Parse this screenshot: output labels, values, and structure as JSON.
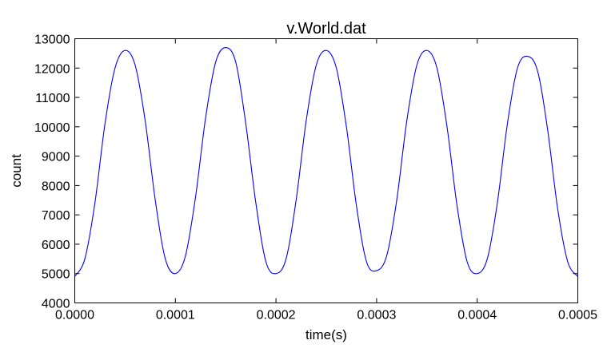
{
  "chart_data": {
    "type": "line",
    "title": "v.World.dat",
    "xlabel": "time(s)",
    "ylabel": "count",
    "xlim": [
      0,
      0.0005
    ],
    "ylim": [
      4000,
      13000
    ],
    "x_ticks": [
      "0.0000",
      "0.0001",
      "0.0002",
      "0.0003",
      "0.0004",
      "0.0005"
    ],
    "x_tick_values": [
      0,
      0.0001,
      0.0002,
      0.0003,
      0.0004,
      0.0005
    ],
    "y_ticks": [
      "4000",
      "5000",
      "6000",
      "7000",
      "8000",
      "9000",
      "10000",
      "11000",
      "12000",
      "13000"
    ],
    "y_tick_values": [
      4000,
      5000,
      6000,
      7000,
      8000,
      9000,
      10000,
      11000,
      12000,
      13000
    ],
    "grid": false,
    "legend": "none",
    "colors": {
      "series": "#0000ff",
      "axes": "#000000"
    },
    "series": [
      {
        "x": [
          0,
          1e-05,
          2e-05,
          3e-05,
          4e-05,
          5e-05,
          6e-05,
          7e-05,
          8e-05,
          9e-05,
          0.0001,
          0.00011,
          0.00012,
          0.00013,
          0.00014,
          0.00015,
          0.00016,
          0.00017,
          0.00018,
          0.00019,
          0.0002,
          0.00021,
          0.00022,
          0.00023,
          0.00024,
          0.00025,
          0.00026,
          0.00027,
          0.00028,
          0.00029,
          0.0003,
          0.00031,
          0.00032,
          0.00033,
          0.00034,
          0.00035,
          0.00036,
          0.00037,
          0.00038,
          0.00039,
          0.0004,
          0.00041,
          0.00042,
          0.00043,
          0.00044,
          0.00045,
          0.00046,
          0.00047,
          0.00048,
          0.00049,
          0.0005
        ],
        "values": [
          4900,
          5500,
          7400,
          10100,
          12000,
          12600,
          12100,
          10200,
          7500,
          5500,
          5000,
          5600,
          7600,
          10300,
          12200,
          12700,
          12200,
          10100,
          7400,
          5400,
          5000,
          5500,
          7500,
          10200,
          12100,
          12600,
          12000,
          10000,
          7300,
          5400,
          5100,
          5600,
          7500,
          10200,
          12100,
          12600,
          12000,
          10000,
          7300,
          5400,
          5000,
          5500,
          7400,
          10100,
          12000,
          12400,
          11900,
          9900,
          7200,
          5400,
          4900
        ]
      }
    ]
  }
}
